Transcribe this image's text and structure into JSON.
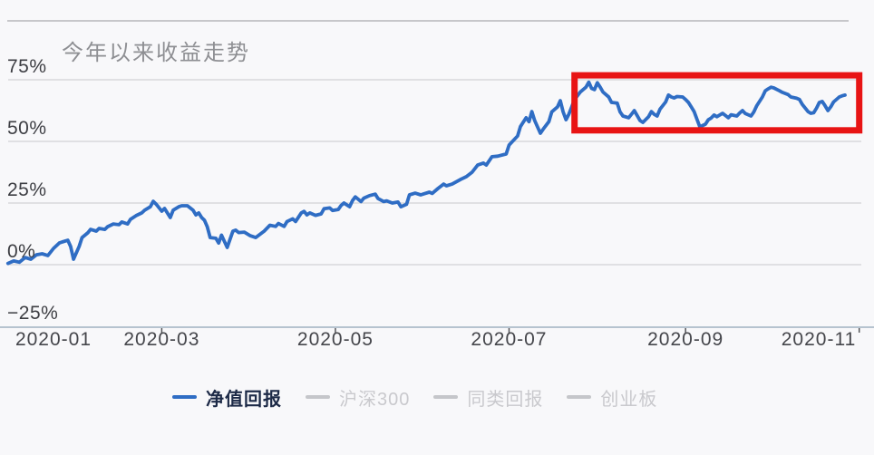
{
  "chart": {
    "title": "今年以来收益走势",
    "legend": [
      {
        "label": "净值回报",
        "active": true
      },
      {
        "label": "沪深300",
        "active": false
      },
      {
        "label": "同类回报",
        "active": false
      },
      {
        "label": "创业板",
        "active": false
      }
    ]
  },
  "colors": {
    "accent_blue": "#2f6dc4",
    "annotation_red": "#e81414",
    "gridline": "#d7d8db",
    "axis_line": "#b6c3cf",
    "tick_mark": "#55565a",
    "x_tick_text": "#45464b",
    "y_tick_text": "#3d3e43",
    "title_text": "#8e8f93",
    "legend_active_text": "#1d2a47",
    "legend_inactive_text": "#c9c9cd",
    "legend_inactive_dash": "#c5c6ca",
    "background": "#f8f8fa"
  },
  "chart_data": {
    "type": "line",
    "title": "今年以来收益走势",
    "grid": true,
    "legend_position": "bottom",
    "x_axis": {
      "type": "time",
      "start": "2020-01",
      "end": "2020-11",
      "tick_labels": [
        "2020-01",
        "2020-03",
        "2020-05",
        "2020-07",
        "2020-09",
        "2020-11"
      ],
      "tick_days_from_jan1": [
        0,
        60,
        121,
        182,
        244,
        305
      ]
    },
    "y_axis": {
      "unit": "%",
      "ticks": [
        75,
        50,
        25,
        0,
        -25
      ],
      "tick_labels": [
        "75%",
        "50%",
        "25%",
        "0%",
        "−25%"
      ],
      "range": [
        -25,
        75
      ]
    },
    "annotation_box": {
      "description": "red highlight rectangle over Aug-Nov plateau",
      "day_start": 205,
      "day_end": 305,
      "pct_top": 76.8,
      "pct_bottom": 54.5
    },
    "series": [
      {
        "name": "净值回报",
        "visible": true,
        "points_day_pct": [
          [
            6,
            0.5
          ],
          [
            8,
            1.5
          ],
          [
            10,
            1.0
          ],
          [
            12,
            2.9
          ],
          [
            14,
            2.2
          ],
          [
            16,
            4.0
          ],
          [
            18,
            4.4
          ],
          [
            20,
            3.7
          ],
          [
            22,
            6.6
          ],
          [
            24,
            8.8
          ],
          [
            25,
            9.2
          ],
          [
            27,
            9.9
          ],
          [
            28,
            7.4
          ],
          [
            29,
            2.2
          ],
          [
            31,
            7.4
          ],
          [
            32,
            11.0
          ],
          [
            34,
            12.9
          ],
          [
            35,
            14.3
          ],
          [
            37,
            13.6
          ],
          [
            38,
            14.7
          ],
          [
            40,
            14.3
          ],
          [
            41,
            15.4
          ],
          [
            43,
            16.5
          ],
          [
            45,
            16.2
          ],
          [
            46,
            17.3
          ],
          [
            48,
            16.5
          ],
          [
            49,
            18.4
          ],
          [
            51,
            19.9
          ],
          [
            53,
            21.0
          ],
          [
            54,
            22.1
          ],
          [
            56,
            23.5
          ],
          [
            57,
            25.7
          ],
          [
            58,
            24.6
          ],
          [
            60,
            21.7
          ],
          [
            61,
            22.8
          ],
          [
            63,
            19.1
          ],
          [
            64,
            22.1
          ],
          [
            66,
            23.5
          ],
          [
            67,
            23.9
          ],
          [
            69,
            23.9
          ],
          [
            71,
            22.1
          ],
          [
            72,
            20.2
          ],
          [
            73,
            21.0
          ],
          [
            74,
            19.1
          ],
          [
            75,
            18.0
          ],
          [
            76,
            15.4
          ],
          [
            77,
            11.0
          ],
          [
            79,
            10.7
          ],
          [
            80,
            8.8
          ],
          [
            81,
            12.0
          ],
          [
            83,
            7.0
          ],
          [
            85,
            13.6
          ],
          [
            86,
            14.0
          ],
          [
            87,
            13.0
          ],
          [
            89,
            13.2
          ],
          [
            91,
            11.8
          ],
          [
            93,
            11.0
          ],
          [
            96,
            13.6
          ],
          [
            98,
            16.0
          ],
          [
            100,
            15.5
          ],
          [
            101,
            16.7
          ],
          [
            103,
            15.5
          ],
          [
            104,
            17.5
          ],
          [
            106,
            18.6
          ],
          [
            107,
            17.5
          ],
          [
            109,
            21.0
          ],
          [
            110,
            21.6
          ],
          [
            111,
            20.2
          ],
          [
            112,
            21.0
          ],
          [
            114,
            20.0
          ],
          [
            116,
            20.6
          ],
          [
            117,
            22.7
          ],
          [
            119,
            23.0
          ],
          [
            120,
            22.0
          ],
          [
            122,
            22.4
          ],
          [
            123,
            24.0
          ],
          [
            124,
            25.0
          ],
          [
            126,
            23.5
          ],
          [
            127,
            26.0
          ],
          [
            128,
            27.5
          ],
          [
            130,
            25.6
          ],
          [
            131,
            27.0
          ],
          [
            133,
            28.0
          ],
          [
            135,
            28.6
          ],
          [
            136,
            26.8
          ],
          [
            138,
            25.6
          ],
          [
            139,
            25.9
          ],
          [
            141,
            25.0
          ],
          [
            143,
            25.4
          ],
          [
            144,
            23.5
          ],
          [
            146,
            24.5
          ],
          [
            147,
            28.3
          ],
          [
            149,
            29.0
          ],
          [
            151,
            28.3
          ],
          [
            152,
            28.7
          ],
          [
            154,
            29.4
          ],
          [
            155,
            28.9
          ],
          [
            157,
            30.9
          ],
          [
            159,
            32.7
          ],
          [
            160,
            32.0
          ],
          [
            162,
            32.7
          ],
          [
            165,
            34.6
          ],
          [
            167,
            35.7
          ],
          [
            169,
            37.5
          ],
          [
            171,
            40.4
          ],
          [
            173,
            41.2
          ],
          [
            174,
            40.4
          ],
          [
            176,
            43.8
          ],
          [
            178,
            44.0
          ],
          [
            181,
            44.9
          ],
          [
            182,
            48.5
          ],
          [
            185,
            52.2
          ],
          [
            186,
            56.0
          ],
          [
            188,
            59.6
          ],
          [
            189,
            58.0
          ],
          [
            190,
            62.1
          ],
          [
            191,
            58.5
          ],
          [
            193,
            53.3
          ],
          [
            194,
            55.0
          ],
          [
            196,
            58.0
          ],
          [
            197,
            62.0
          ],
          [
            199,
            64.0
          ],
          [
            200,
            66.5
          ],
          [
            201,
            62.0
          ],
          [
            202,
            58.8
          ],
          [
            203,
            61.0
          ],
          [
            204,
            64.0
          ],
          [
            205,
            67.0
          ],
          [
            207,
            70.0
          ],
          [
            209,
            72.0
          ],
          [
            210,
            74.0
          ],
          [
            211,
            71.5
          ],
          [
            212,
            71.0
          ],
          [
            213,
            73.8
          ],
          [
            214,
            72.0
          ],
          [
            215,
            70.0
          ],
          [
            217,
            68.0
          ],
          [
            218,
            65.8
          ],
          [
            220,
            65.5
          ],
          [
            221,
            62.0
          ],
          [
            222,
            60.3
          ],
          [
            224,
            59.6
          ],
          [
            225,
            61.0
          ],
          [
            226,
            62.5
          ],
          [
            228,
            58.5
          ],
          [
            229,
            57.7
          ],
          [
            231,
            60.0
          ],
          [
            232,
            62.1
          ],
          [
            233,
            61.0
          ],
          [
            234,
            60.3
          ],
          [
            235,
            63.0
          ],
          [
            237,
            66.0
          ],
          [
            238,
            68.8
          ],
          [
            239,
            68.0
          ],
          [
            240,
            67.6
          ],
          [
            241,
            68.2
          ],
          [
            243,
            68.0
          ],
          [
            244,
            67.0
          ],
          [
            245,
            65.8
          ],
          [
            246,
            64.0
          ],
          [
            247,
            62.1
          ],
          [
            248,
            59.0
          ],
          [
            249,
            55.9
          ],
          [
            251,
            57.0
          ],
          [
            252,
            58.8
          ],
          [
            253,
            59.5
          ],
          [
            254,
            60.7
          ],
          [
            255,
            60.0
          ],
          [
            257,
            61.4
          ],
          [
            258,
            60.5
          ],
          [
            259,
            59.6
          ],
          [
            260,
            60.8
          ],
          [
            262,
            60.3
          ],
          [
            263,
            61.5
          ],
          [
            264,
            62.5
          ],
          [
            265,
            61.3
          ],
          [
            267,
            60.3
          ],
          [
            268,
            62.0
          ],
          [
            269,
            64.5
          ],
          [
            271,
            68.0
          ],
          [
            272,
            70.5
          ],
          [
            273,
            71.3
          ],
          [
            274,
            72.0
          ],
          [
            275,
            71.7
          ],
          [
            277,
            70.5
          ],
          [
            278,
            69.9
          ],
          [
            280,
            69.0
          ],
          [
            281,
            68.0
          ],
          [
            283,
            67.5
          ],
          [
            284,
            67.0
          ],
          [
            285,
            65.0
          ],
          [
            287,
            62.1
          ],
          [
            288,
            61.4
          ],
          [
            289,
            61.6
          ],
          [
            290,
            63.5
          ],
          [
            291,
            65.8
          ],
          [
            292,
            66.2
          ],
          [
            293,
            64.5
          ],
          [
            294,
            62.5
          ],
          [
            295,
            64.0
          ],
          [
            296,
            66.0
          ],
          [
            298,
            68.0
          ],
          [
            299,
            68.5
          ],
          [
            300,
            68.8
          ]
        ]
      },
      {
        "name": "沪深300",
        "visible": false,
        "points_day_pct": []
      },
      {
        "name": "同类回报",
        "visible": false,
        "points_day_pct": []
      },
      {
        "name": "创业板",
        "visible": false,
        "points_day_pct": []
      }
    ]
  }
}
